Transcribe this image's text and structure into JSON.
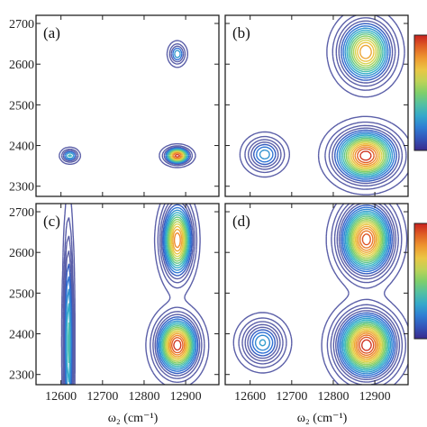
{
  "chart_data": [
    {
      "type": "contour",
      "panel_label": "(a)",
      "x_ticks": [
        12600,
        12700,
        12800,
        12900
      ],
      "y_ticks": [
        2300,
        2400,
        2500,
        2600,
        2700
      ],
      "xlim": [
        12540,
        12980
      ],
      "ylim": [
        2275,
        2720
      ],
      "peaks": [
        {
          "x": 12615,
          "y": 2375,
          "sx": 10,
          "sy": 10,
          "amp": 0.3
        },
        {
          "x": 12628,
          "y": 2375,
          "sx": 10,
          "sy": 10,
          "amp": 0.3
        },
        {
          "x": 12880,
          "y": 2375,
          "sx": 18,
          "sy": 12,
          "amp": 1.0
        },
        {
          "x": 12880,
          "y": 2625,
          "sx": 12,
          "sy": 16,
          "amp": 0.45
        }
      ],
      "contour_levels": 12,
      "has_colorbar": true
    },
    {
      "type": "contour",
      "panel_label": "(b)",
      "x_ticks": [
        12600,
        12700,
        12800,
        12900
      ],
      "y_ticks": [
        2300,
        2400,
        2500,
        2600,
        2700
      ],
      "xlim": [
        12540,
        12980
      ],
      "ylim": [
        2275,
        2720
      ],
      "peaks": [
        {
          "x": 12635,
          "y": 2378,
          "sx": 28,
          "sy": 26,
          "amp": 0.4
        },
        {
          "x": 12878,
          "y": 2375,
          "sx": 45,
          "sy": 38,
          "amp": 1.0
        },
        {
          "x": 12878,
          "y": 2630,
          "sx": 38,
          "sy": 45,
          "amp": 0.85
        }
      ],
      "contour_levels": 18,
      "has_colorbar": true
    },
    {
      "type": "contour",
      "panel_label": "(c)",
      "x_ticks": [
        12600,
        12700,
        12800,
        12900
      ],
      "y_ticks": [
        2300,
        2400,
        2500,
        2600,
        2700
      ],
      "xlim": [
        12540,
        12980
      ],
      "ylim": [
        2275,
        2720
      ],
      "peaks": [
        {
          "x": 12618,
          "y": 2378,
          "sx": 7,
          "sy": 170,
          "amp": 0.5
        },
        {
          "x": 12880,
          "y": 2372,
          "sx": 30,
          "sy": 42,
          "amp": 1.0
        },
        {
          "x": 12880,
          "y": 2630,
          "sx": 22,
          "sy": 55,
          "amp": 0.9
        }
      ],
      "contour_levels": 18,
      "has_colorbar": false
    },
    {
      "type": "contour",
      "panel_label": "(d)",
      "x_ticks": [
        12600,
        12700,
        12800,
        12900
      ],
      "y_ticks": [
        2300,
        2400,
        2500,
        2600,
        2700
      ],
      "xlim": [
        12540,
        12980
      ],
      "ylim": [
        2275,
        2720
      ],
      "peaks": [
        {
          "x": 12630,
          "y": 2378,
          "sx": 32,
          "sy": 34,
          "amp": 0.4
        },
        {
          "x": 12880,
          "y": 2372,
          "sx": 42,
          "sy": 48,
          "amp": 1.0
        },
        {
          "x": 12880,
          "y": 2632,
          "sx": 38,
          "sy": 52,
          "amp": 0.95
        }
      ],
      "contour_levels": 22,
      "has_colorbar": true
    }
  ],
  "x_axis_title": "ω₂ (cm⁻¹)",
  "colors": {
    "frame": "#222222",
    "low_contour": "#5b5fa8",
    "colormap": [
      "#3a2a8c",
      "#2e6fd6",
      "#35b6c8",
      "#7fcf6a",
      "#e8d54a",
      "#f08a2a",
      "#c8201e"
    ]
  }
}
